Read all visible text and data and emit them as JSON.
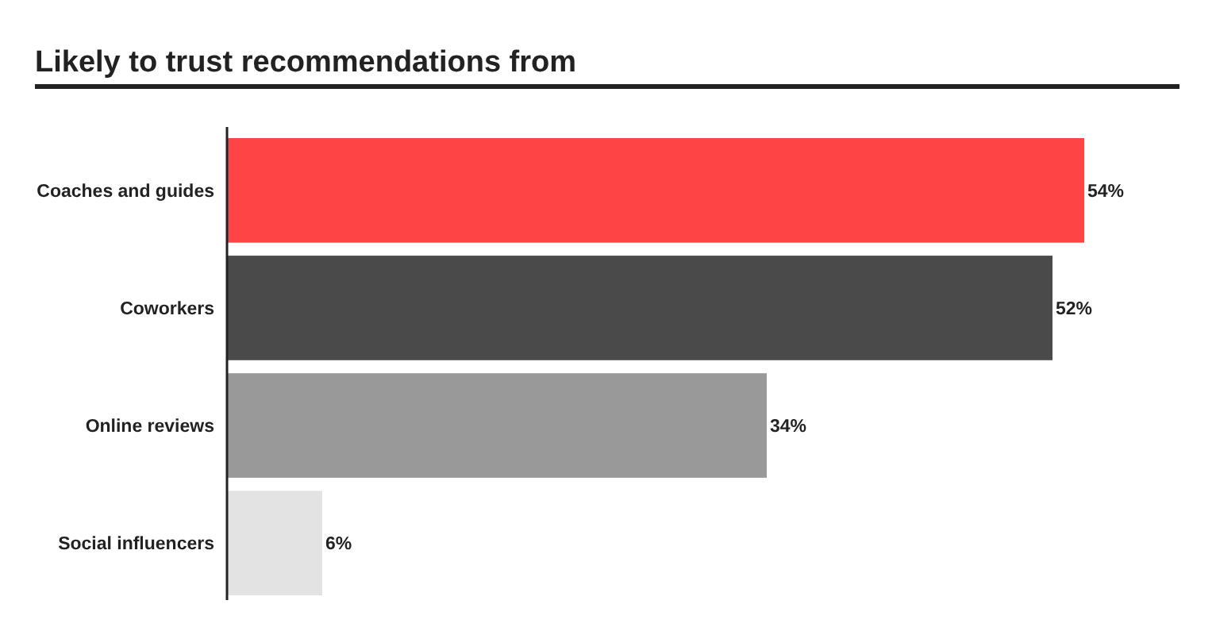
{
  "chart_data": {
    "type": "bar",
    "orientation": "horizontal",
    "title": "Likely to trust recommendations from",
    "categories": [
      "Coaches and guides",
      "Coworkers",
      "Online reviews",
      "Social influencers"
    ],
    "values": [
      54,
      52,
      34,
      6
    ],
    "colors": [
      "#ff4444",
      "#4a4a4a",
      "#999999",
      "#e3e3e3"
    ],
    "value_labels": [
      "54%",
      "52%",
      "34%",
      "6%"
    ]
  }
}
